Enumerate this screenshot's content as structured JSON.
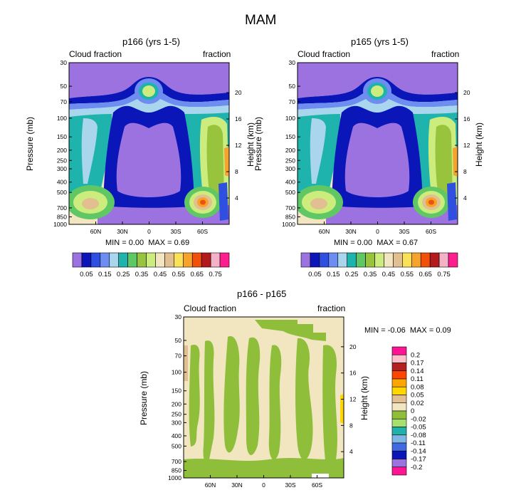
{
  "figure": {
    "title": "MAM",
    "colors": {
      "cloud_palette": [
        "#9b72e0",
        "#0a16b8",
        "#2f4fe0",
        "#6d8ef0",
        "#a9d6ec",
        "#1fb3ad",
        "#5fc763",
        "#97c43c",
        "#ccec7e",
        "#f2e6c0",
        "#e2bf90",
        "#f9e15a",
        "#f6a32e",
        "#f0500a",
        "#b21a1c",
        "#f4b2c7",
        "#ff1e8e"
      ],
      "diff_palette": [
        "#9b72e0",
        "#0a16b8",
        "#4169e1",
        "#7eb6e6",
        "#20b2aa",
        "#a8e070",
        "#8fbf3a",
        "#f2e6c0",
        "#e2bf90",
        "#ffd700",
        "#ffa500",
        "#ff4500",
        "#b22222",
        "#ffc0cb",
        "#ff1493"
      ]
    }
  },
  "chart_data": [
    {
      "type": "heatmap",
      "title": "p166 (yrs 1-5)",
      "left_label": "Cloud fraction",
      "right_label": "fraction",
      "ylabel": "Pressure (mb)",
      "ylabel_right": "Height (km)",
      "x_ticks": [
        "60N",
        "30N",
        "0",
        "30S",
        "60S"
      ],
      "y_ticks": [
        "30",
        "50",
        "70",
        "100",
        "150",
        "200",
        "250",
        "300",
        "400",
        "500",
        "700",
        "850",
        "1000"
      ],
      "height_ticks": [
        "20",
        "16",
        "12",
        "8",
        "4"
      ],
      "min_label": "MIN =",
      "min_value": "0.00",
      "max_label": "MAX =",
      "max_value": "0.69",
      "colorbar_labels": [
        "0.05",
        "0.15",
        "0.25",
        "0.35",
        "0.45",
        "0.55",
        "0.65",
        "0.75"
      ],
      "contour_levels": [
        0.05,
        0.1,
        0.15,
        0.2,
        0.25,
        0.3,
        0.35,
        0.4,
        0.45,
        0.5,
        0.55,
        0.6,
        0.65,
        0.7,
        0.75
      ]
    },
    {
      "type": "heatmap",
      "title": "p165 (yrs 1-5)",
      "left_label": "Cloud fraction",
      "right_label": "fraction",
      "ylabel": "Pressure (mb)",
      "ylabel_right": "Height (km)",
      "x_ticks": [
        "60N",
        "30N",
        "0",
        "30S",
        "60S"
      ],
      "y_ticks": [
        "30",
        "50",
        "70",
        "100",
        "150",
        "200",
        "250",
        "300",
        "400",
        "500",
        "700",
        "850",
        "1000"
      ],
      "height_ticks": [
        "20",
        "16",
        "12",
        "8",
        "4"
      ],
      "min_label": "MIN =",
      "min_value": "0.00",
      "max_label": "MAX =",
      "max_value": "0.67",
      "colorbar_labels": [
        "0.05",
        "0.15",
        "0.25",
        "0.35",
        "0.45",
        "0.55",
        "0.65",
        "0.75"
      ],
      "contour_levels": [
        0.05,
        0.1,
        0.15,
        0.2,
        0.25,
        0.3,
        0.35,
        0.4,
        0.45,
        0.5,
        0.55,
        0.6,
        0.65,
        0.7,
        0.75
      ]
    },
    {
      "type": "heatmap",
      "title": "p166 - p165",
      "left_label": "Cloud fraction",
      "right_label": "fraction",
      "ylabel": "Pressure (mb)",
      "ylabel_right": "Height (km)",
      "x_ticks": [
        "60N",
        "30N",
        "0",
        "30S",
        "60S"
      ],
      "y_ticks": [
        "30",
        "50",
        "70",
        "100",
        "150",
        "200",
        "250",
        "300",
        "400",
        "500",
        "700",
        "850",
        "1000"
      ],
      "height_ticks": [
        "20",
        "16",
        "12",
        "8",
        "4"
      ],
      "min_label": "MIN =",
      "min_value": "-0.06",
      "max_label": "MAX =",
      "max_value": "0.09",
      "colorbar_labels": [
        "0.2",
        "0.17",
        "0.14",
        "0.11",
        "0.08",
        "0.05",
        "0.02",
        "0",
        "-0.02",
        "-0.05",
        "-0.08",
        "-0.11",
        "-0.14",
        "-0.17",
        "-0.2"
      ]
    }
  ]
}
